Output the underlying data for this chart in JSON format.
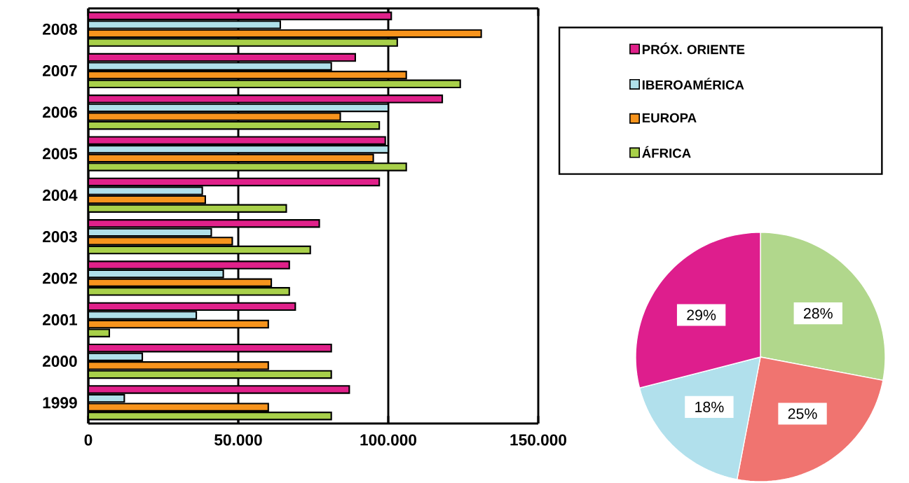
{
  "chart_data": [
    {
      "type": "bar",
      "orientation": "horizontal",
      "categories": [
        "2008",
        "2007",
        "2006",
        "2005",
        "2004",
        "2003",
        "2002",
        "2001",
        "2000",
        "1999"
      ],
      "series": [
        {
          "name": "PRÓX. ORIENTE",
          "color": "#e0218a",
          "values": [
            101000,
            89000,
            118000,
            99000,
            97000,
            77000,
            67000,
            69000,
            81000,
            87000
          ]
        },
        {
          "name": "IBEROAMÉRICA",
          "color": "#b0e0ea",
          "values": [
            64000,
            81000,
            100000,
            100000,
            38000,
            41000,
            45000,
            36000,
            18000,
            12000
          ]
        },
        {
          "name": "EUROPA",
          "color": "#f7941d",
          "values": [
            131000,
            106000,
            84000,
            95000,
            39000,
            48000,
            61000,
            60000,
            60000,
            60000
          ]
        },
        {
          "name": "ÁFRICA",
          "color": "#a8d04a",
          "values": [
            103000,
            124000,
            97000,
            106000,
            66000,
            74000,
            67000,
            7000,
            81000,
            81000
          ]
        }
      ],
      "xlim": [
        0,
        150000
      ],
      "xticks": [
        0,
        {
          "value": 50000,
          "label": "50.000"
        },
        {
          "value": 100000,
          "label": "100.000"
        },
        {
          "value": 150000,
          "label": "150.000"
        }
      ],
      "grid": "x",
      "legend": "top right"
    },
    {
      "type": "pie",
      "categories": [
        null,
        null,
        null,
        null
      ],
      "values": [
        28,
        25,
        18,
        29
      ],
      "colors": [
        "#b1d78c",
        "#f07470",
        "#b1e0ec",
        "#de1e8d"
      ],
      "value_labels": [
        "28%",
        "25%",
        "18%",
        "29%"
      ]
    }
  ]
}
